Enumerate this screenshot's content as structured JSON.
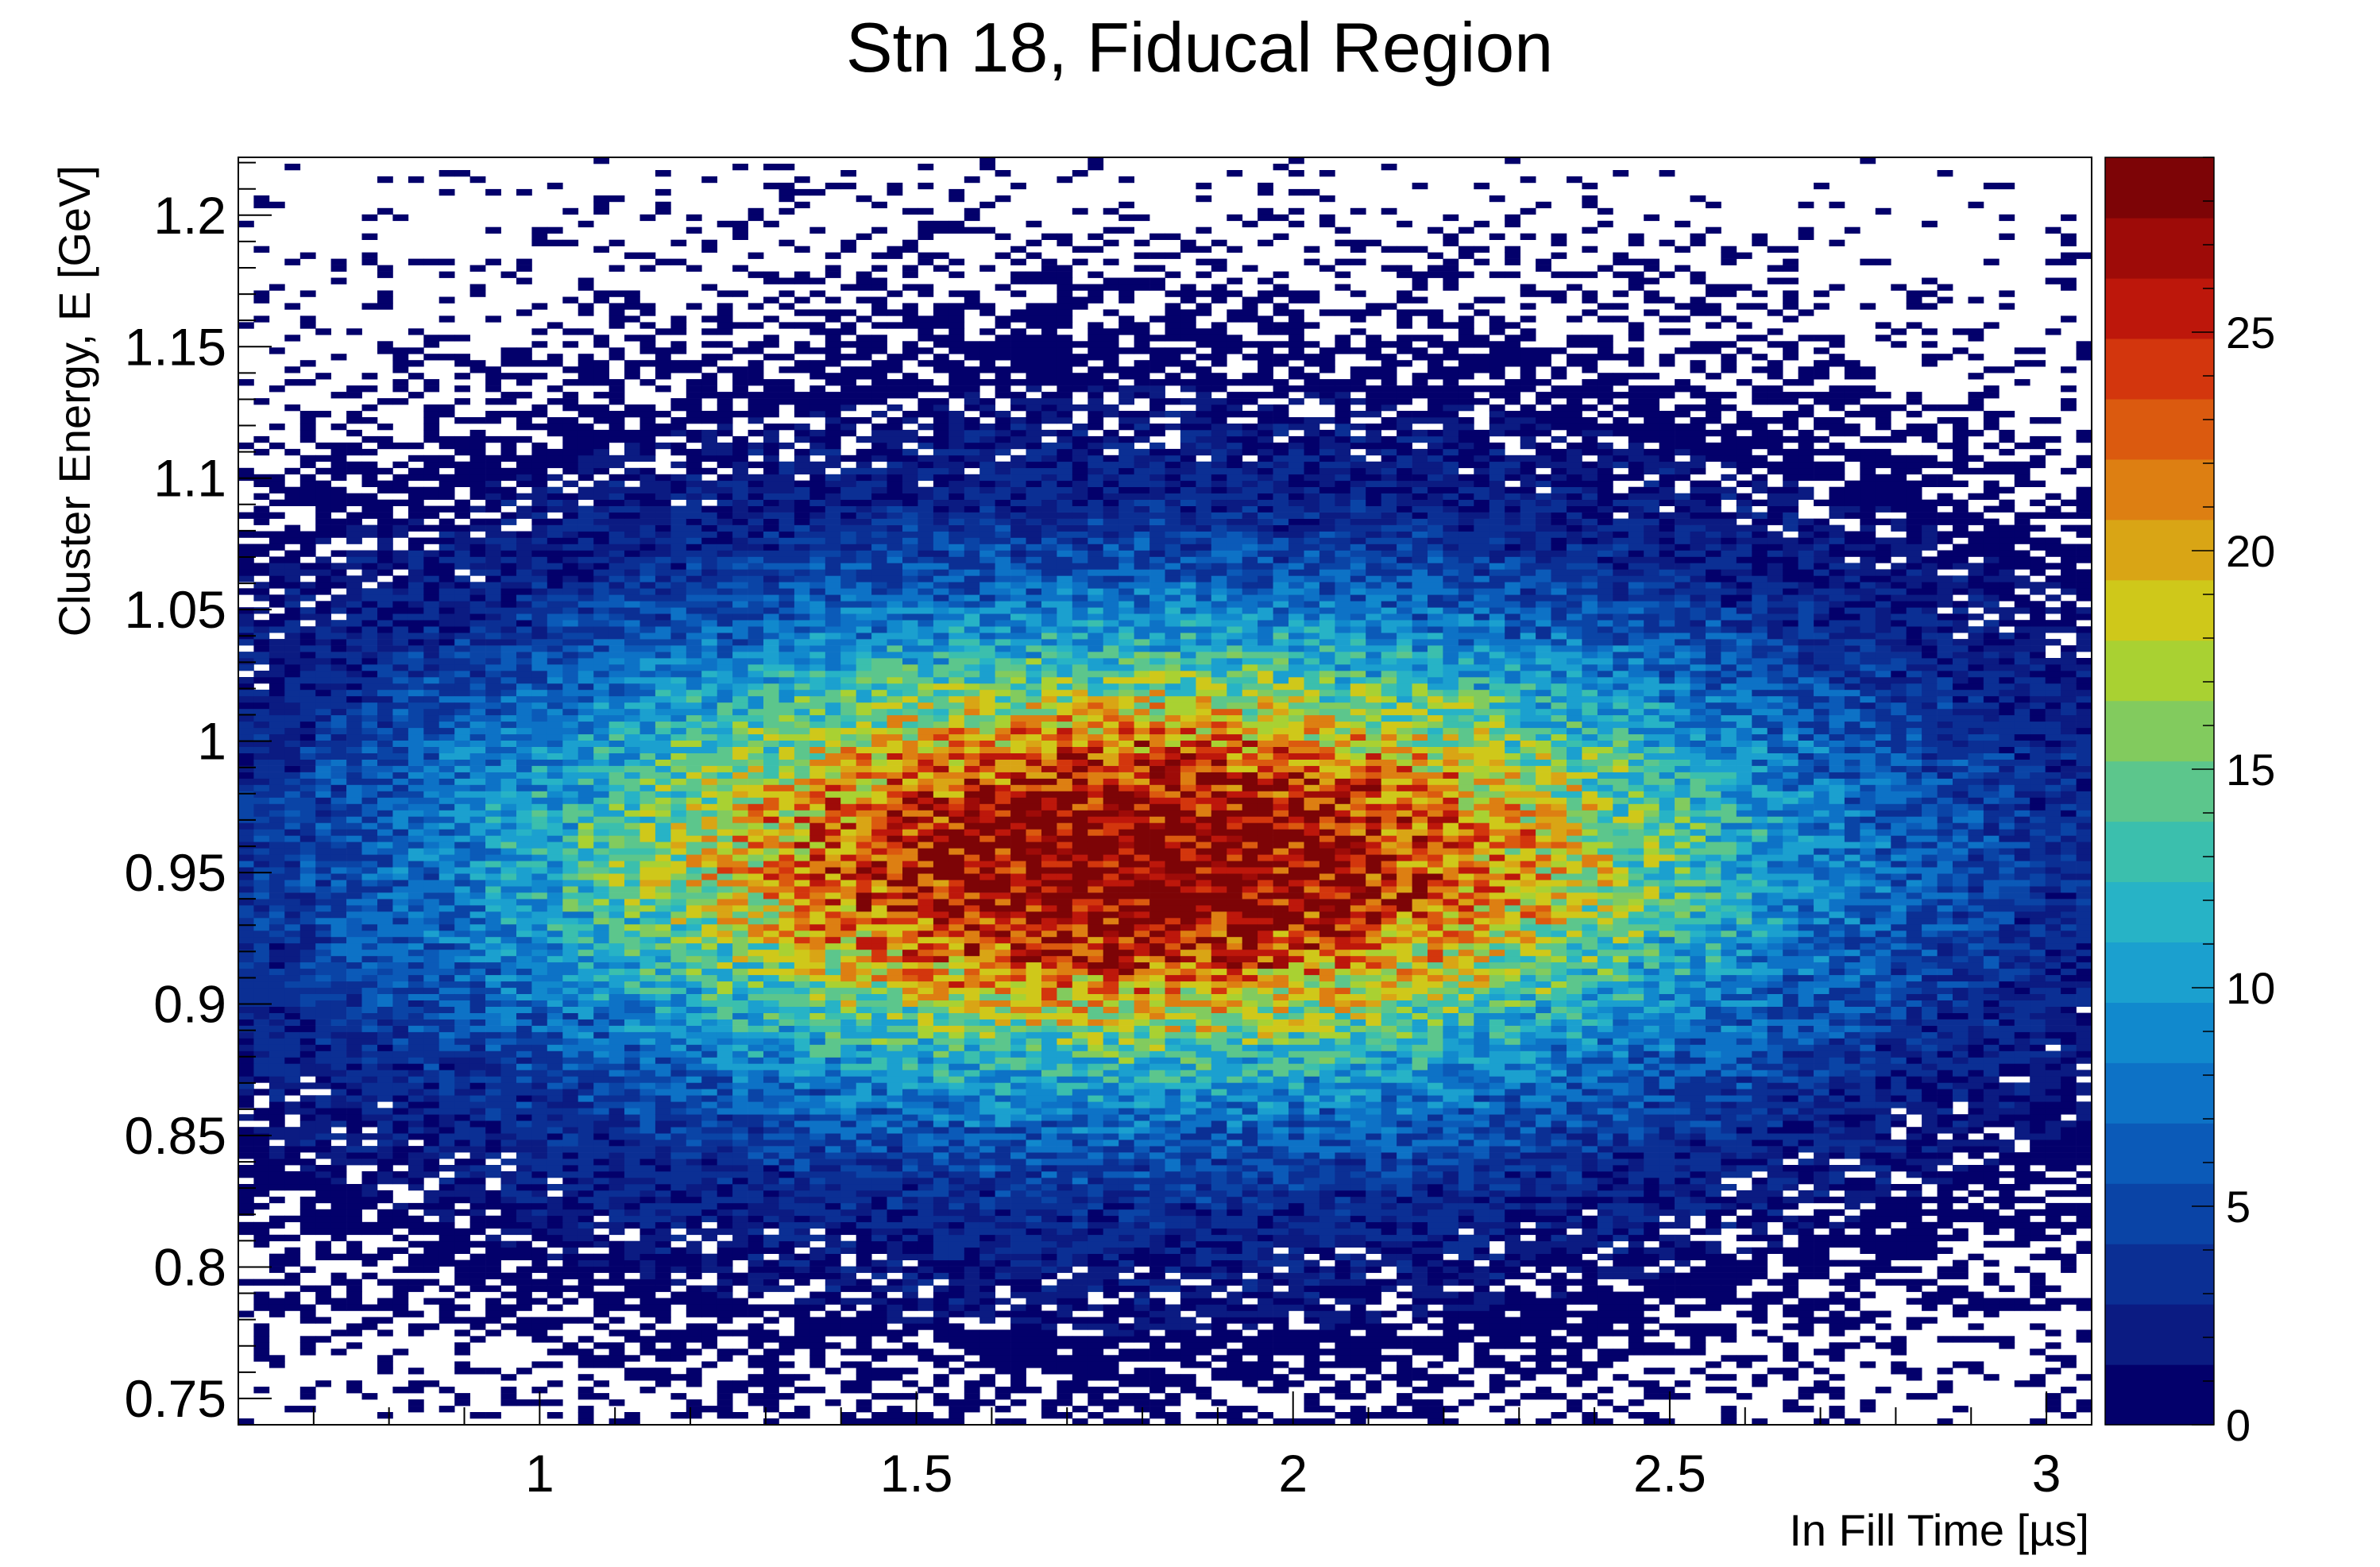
{
  "chart_data": {
    "type": "heatmap",
    "title": "Stn 18, Fiducal Region",
    "xlabel": "In Fill Time [µs]",
    "ylabel": "Cluster Energy, E [GeV]",
    "xlim": [
      0.6,
      3.06
    ],
    "ylim": [
      0.74,
      1.222
    ],
    "zlim": [
      0,
      29
    ],
    "x_ticks": [
      "1",
      "1.5",
      "2",
      "2.5",
      "3"
    ],
    "y_ticks": [
      "0.75",
      "0.8",
      "0.85",
      "0.9",
      "0.95",
      "1",
      "1.05",
      "1.1",
      "1.15",
      "1.2"
    ],
    "z_ticks": [
      "0",
      "5",
      "10",
      "15",
      "20",
      "25"
    ],
    "peak": {
      "x": 1.8,
      "y": 0.955,
      "max_count": 27
    },
    "colormap": [
      "#03006b",
      "#0b1b82",
      "#0b2f94",
      "#0a44a6",
      "#0b5ab8",
      "#0d72c6",
      "#1189cd",
      "#1ba0cf",
      "#27b3c6",
      "#3bbfad",
      "#5cc68c",
      "#82cb5e",
      "#a9d132",
      "#cfc81a",
      "#d9a515",
      "#dd7f12",
      "#db5a0f",
      "#d3360d",
      "#bd170b",
      "#9e0b08",
      "#7d0406"
    ],
    "grid": false
  }
}
